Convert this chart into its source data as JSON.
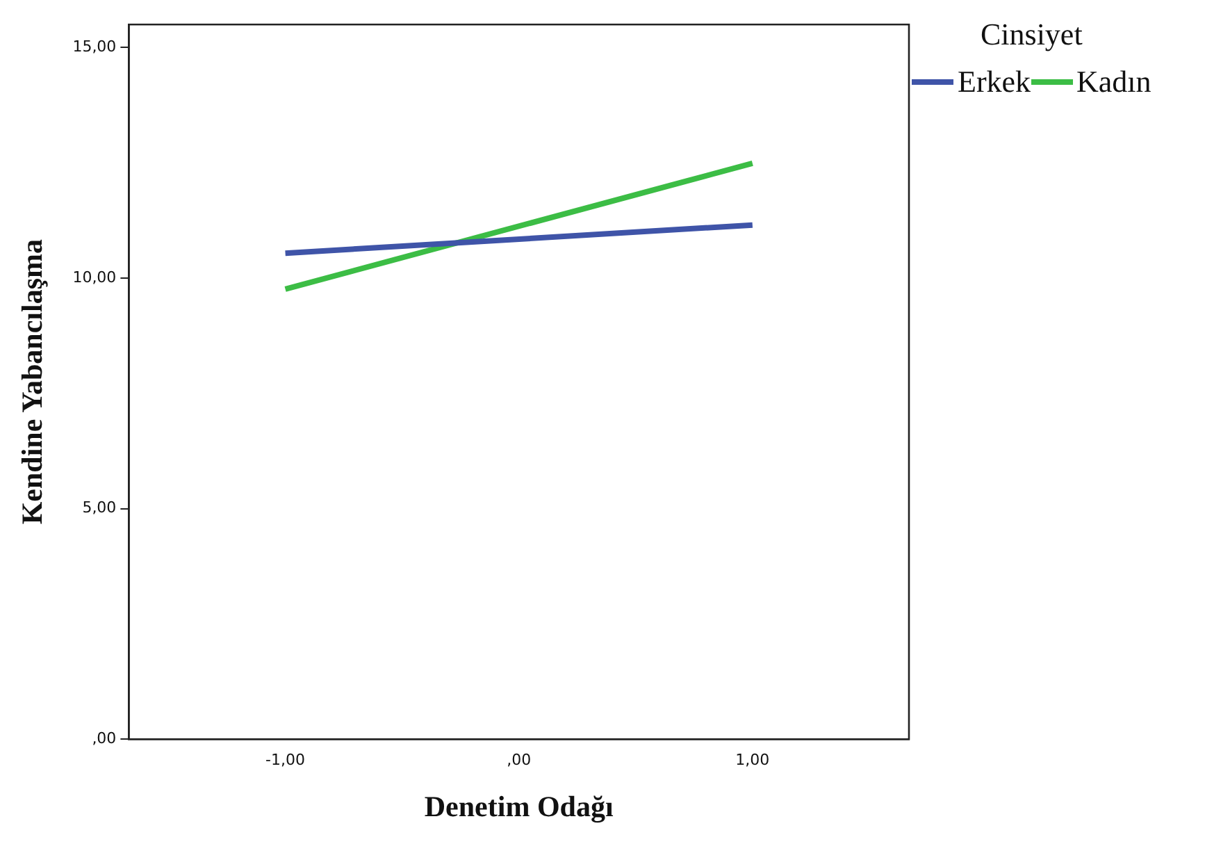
{
  "chart_data": {
    "type": "line",
    "xlabel": "Denetim Odağı",
    "ylabel": "Kendine Yabancılaşma",
    "legend_title": "Cinsiyet",
    "legend": "top right",
    "grid": false,
    "marker": "none",
    "line_style": "solid",
    "x": [
      -1,
      1
    ],
    "series": [
      {
        "name": "Erkek",
        "color": "#3f54a8",
        "values": [
          10.54,
          11.15
        ]
      },
      {
        "name": "Kadın",
        "color": "#3cbd45",
        "values": [
          9.76,
          12.49
        ]
      }
    ],
    "xlim": [
      -1.67,
      1.67
    ],
    "xticks": [
      {
        "value": -1,
        "label": "-1,00"
      },
      {
        "value": 0,
        "label": ",00"
      },
      {
        "value": 1,
        "label": "1,00"
      }
    ],
    "ylim": [
      0,
      15.5
    ],
    "yticks": [
      {
        "value": 0,
        "label": ",00"
      },
      {
        "value": 5,
        "label": "5,00"
      },
      {
        "value": 10,
        "label": "10,00"
      },
      {
        "value": 15,
        "label": "15,00"
      }
    ]
  }
}
